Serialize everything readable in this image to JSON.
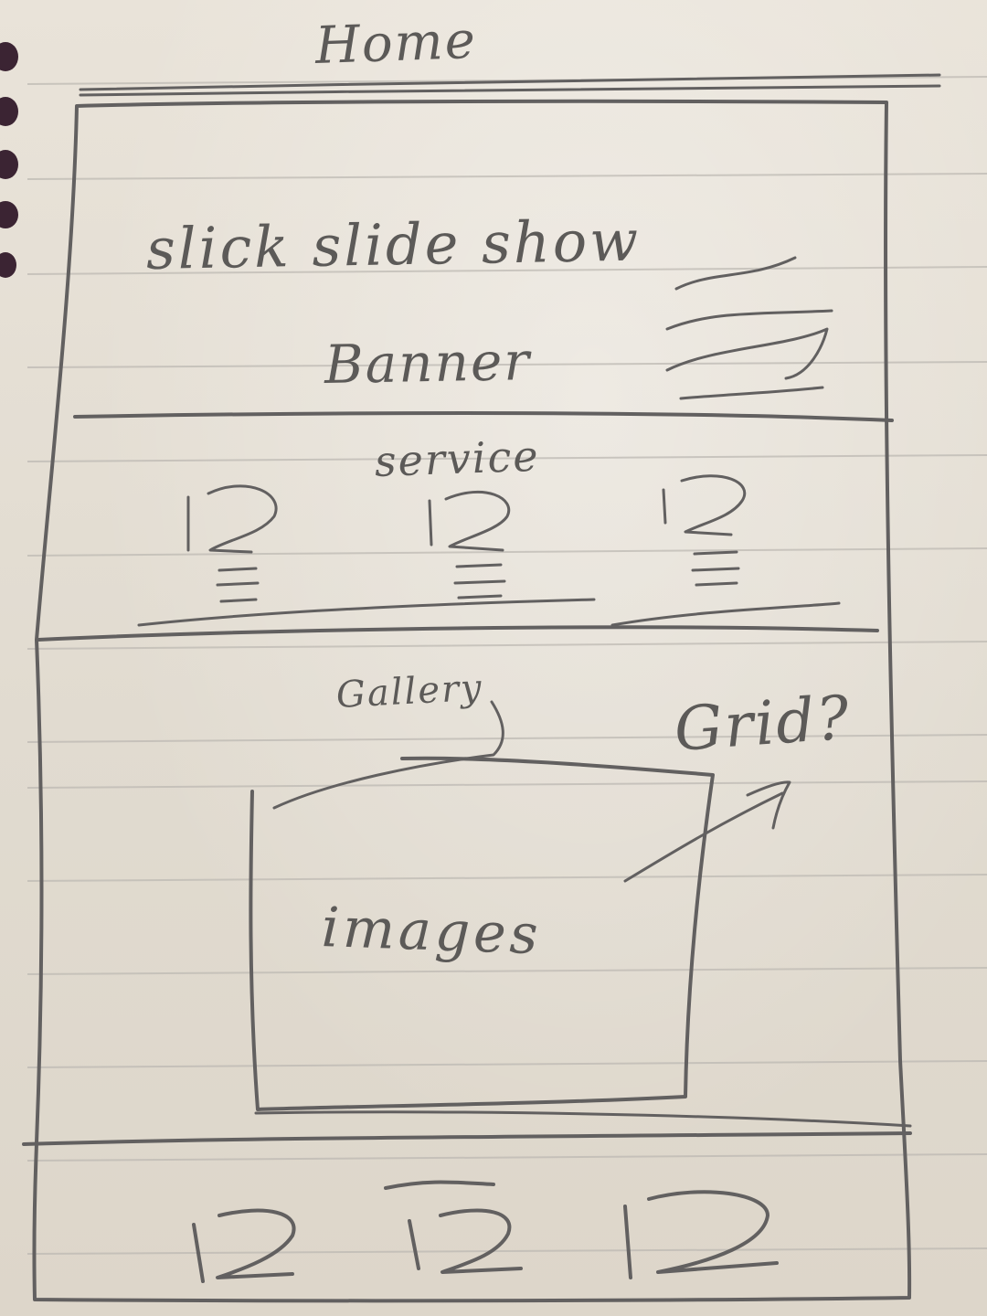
{
  "wireframe": {
    "title": "Home",
    "banner": {
      "slideshow_label": "slick slide show",
      "banner_label": "Banner"
    },
    "service": {
      "section_label": "service"
    },
    "gallery": {
      "section_label": "Gallery",
      "grid_note": "Grid?",
      "images_label": "images"
    }
  },
  "colors": {
    "paper": "#e4ded3",
    "pencil": "#5c5a58",
    "rule_line": "#b9b6b2",
    "binding_hole": "#3a2232"
  }
}
